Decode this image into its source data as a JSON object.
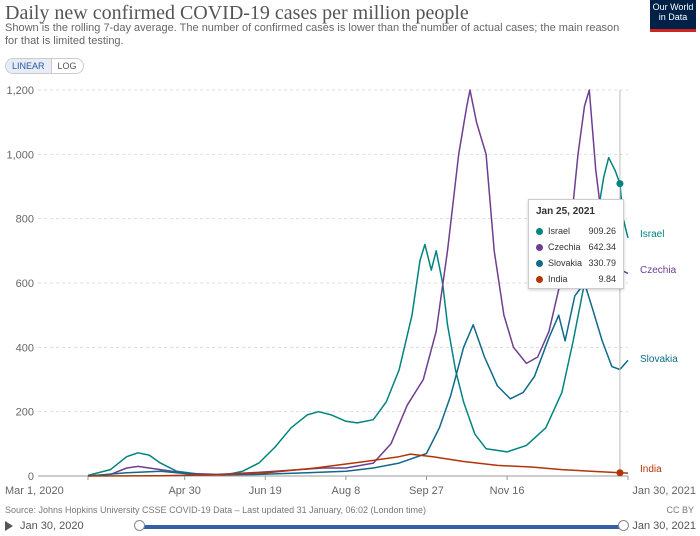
{
  "header": {
    "title": "Daily new confirmed COVID-19 cases per million people",
    "subtitle": "Shown is the rolling 7-day average. The number of confirmed cases is lower than the number of actual cases; the main reason for that is limited testing.",
    "logo_line1": "Our World",
    "logo_line2": "in Data"
  },
  "controls": {
    "linear_label": "LINEAR",
    "log_label": "LOG"
  },
  "footer": {
    "source": "Source: Johns Hopkins University CSSE COVID-19 Data – Last updated 31 January, 06:02 (London time)",
    "license": "CC BY",
    "timeline_start": "Jan 30, 2020",
    "timeline_end": "Jan 30, 2021"
  },
  "tooltip": {
    "date": "Jan 25, 2021",
    "rows": [
      {
        "name": "Israel",
        "value": "909.26",
        "color": "#00847e"
      },
      {
        "name": "Czechia",
        "value": "642.34",
        "color": "#6d3e91"
      },
      {
        "name": "Slovakia",
        "value": "330.79",
        "color": "#0e6a8a"
      },
      {
        "name": "India",
        "value": "9.84",
        "color": "#b13507"
      }
    ]
  },
  "chart_data": {
    "type": "line",
    "title": "Daily new confirmed COVID-19 cases per million people",
    "x_ticks": [
      "Mar 1, 2020",
      "Apr 30",
      "Jun 19",
      "Aug 8",
      "Sep 27",
      "Nov 16",
      "Jan 30, 2021"
    ],
    "ylim": [
      0,
      1200
    ],
    "y_ticks": [
      0,
      200,
      400,
      600,
      800,
      1000,
      1200
    ],
    "y_tick_labels": [
      "0",
      "200",
      "400",
      "600",
      "800",
      "1,000",
      "1,200"
    ],
    "grid": true,
    "x_start": "2020-01-30",
    "x_end": "2021-01-30",
    "series": [
      {
        "name": "Israel",
        "color": "#00847e",
        "points": [
          [
            "2020-03-01",
            2
          ],
          [
            "2020-03-15",
            20
          ],
          [
            "2020-03-25",
            60
          ],
          [
            "2020-04-01",
            72
          ],
          [
            "2020-04-08",
            65
          ],
          [
            "2020-04-15",
            40
          ],
          [
            "2020-04-25",
            15
          ],
          [
            "2020-05-10",
            5
          ],
          [
            "2020-05-25",
            3
          ],
          [
            "2020-06-05",
            15
          ],
          [
            "2020-06-15",
            40
          ],
          [
            "2020-06-25",
            90
          ],
          [
            "2020-07-05",
            150
          ],
          [
            "2020-07-15",
            190
          ],
          [
            "2020-07-22",
            200
          ],
          [
            "2020-07-30",
            190
          ],
          [
            "2020-08-08",
            170
          ],
          [
            "2020-08-15",
            165
          ],
          [
            "2020-08-25",
            175
          ],
          [
            "2020-09-02",
            230
          ],
          [
            "2020-09-10",
            330
          ],
          [
            "2020-09-18",
            500
          ],
          [
            "2020-09-23",
            670
          ],
          [
            "2020-09-26",
            720
          ],
          [
            "2020-09-30",
            640
          ],
          [
            "2020-10-03",
            700
          ],
          [
            "2020-10-07",
            600
          ],
          [
            "2020-10-10",
            470
          ],
          [
            "2020-10-15",
            330
          ],
          [
            "2020-10-20",
            230
          ],
          [
            "2020-10-27",
            130
          ],
          [
            "2020-11-03",
            85
          ],
          [
            "2020-11-16",
            75
          ],
          [
            "2020-11-28",
            95
          ],
          [
            "2020-12-10",
            150
          ],
          [
            "2020-12-20",
            260
          ],
          [
            "2020-12-27",
            420
          ],
          [
            "2021-01-03",
            600
          ],
          [
            "2021-01-10",
            780
          ],
          [
            "2021-01-15",
            930
          ],
          [
            "2021-01-18",
            990
          ],
          [
            "2021-01-22",
            950
          ],
          [
            "2021-01-25",
            909
          ],
          [
            "2021-01-27",
            800
          ],
          [
            "2021-01-30",
            740
          ]
        ]
      },
      {
        "name": "Czechia",
        "color": "#6d3e91",
        "points": [
          [
            "2020-03-01",
            0
          ],
          [
            "2020-03-15",
            5
          ],
          [
            "2020-03-25",
            25
          ],
          [
            "2020-04-01",
            30
          ],
          [
            "2020-04-15",
            20
          ],
          [
            "2020-05-01",
            8
          ],
          [
            "2020-05-20",
            5
          ],
          [
            "2020-06-10",
            10
          ],
          [
            "2020-06-25",
            15
          ],
          [
            "2020-07-10",
            20
          ],
          [
            "2020-07-25",
            25
          ],
          [
            "2020-08-08",
            25
          ],
          [
            "2020-08-25",
            40
          ],
          [
            "2020-09-05",
            100
          ],
          [
            "2020-09-15",
            220
          ],
          [
            "2020-09-25",
            300
          ],
          [
            "2020-10-03",
            450
          ],
          [
            "2020-10-10",
            700
          ],
          [
            "2020-10-17",
            1000
          ],
          [
            "2020-10-22",
            1150
          ],
          [
            "2020-10-24",
            1200
          ],
          [
            "2020-10-28",
            1100
          ],
          [
            "2020-11-03",
            1000
          ],
          [
            "2020-11-08",
            700
          ],
          [
            "2020-11-14",
            500
          ],
          [
            "2020-11-20",
            400
          ],
          [
            "2020-11-28",
            350
          ],
          [
            "2020-12-05",
            370
          ],
          [
            "2020-12-12",
            450
          ],
          [
            "2020-12-18",
            580
          ],
          [
            "2020-12-24",
            700
          ],
          [
            "2020-12-30",
            1000
          ],
          [
            "2021-01-03",
            1150
          ],
          [
            "2021-01-06",
            1200
          ],
          [
            "2021-01-10",
            950
          ],
          [
            "2021-01-15",
            750
          ],
          [
            "2021-01-20",
            680
          ],
          [
            "2021-01-25",
            642
          ],
          [
            "2021-01-30",
            630
          ]
        ]
      },
      {
        "name": "Slovakia",
        "color": "#0e6a8a",
        "points": [
          [
            "2020-03-01",
            0
          ],
          [
            "2020-03-25",
            10
          ],
          [
            "2020-04-15",
            15
          ],
          [
            "2020-05-10",
            3
          ],
          [
            "2020-06-15",
            5
          ],
          [
            "2020-07-15",
            10
          ],
          [
            "2020-08-08",
            15
          ],
          [
            "2020-08-25",
            25
          ],
          [
            "2020-09-10",
            40
          ],
          [
            "2020-09-27",
            70
          ],
          [
            "2020-10-05",
            150
          ],
          [
            "2020-10-12",
            250
          ],
          [
            "2020-10-20",
            400
          ],
          [
            "2020-10-26",
            470
          ],
          [
            "2020-11-02",
            370
          ],
          [
            "2020-11-10",
            280
          ],
          [
            "2020-11-18",
            240
          ],
          [
            "2020-11-26",
            260
          ],
          [
            "2020-12-03",
            310
          ],
          [
            "2020-12-12",
            430
          ],
          [
            "2020-12-18",
            500
          ],
          [
            "2020-12-22",
            420
          ],
          [
            "2020-12-28",
            560
          ],
          [
            "2021-01-03",
            600
          ],
          [
            "2021-01-08",
            520
          ],
          [
            "2021-01-14",
            420
          ],
          [
            "2021-01-20",
            340
          ],
          [
            "2021-01-25",
            331
          ],
          [
            "2021-01-30",
            360
          ]
        ]
      },
      {
        "name": "India",
        "color": "#b13507",
        "points": [
          [
            "2020-03-01",
            0
          ],
          [
            "2020-04-15",
            1
          ],
          [
            "2020-05-20",
            4
          ],
          [
            "2020-06-20",
            10
          ],
          [
            "2020-07-20",
            25
          ],
          [
            "2020-08-20",
            45
          ],
          [
            "2020-09-10",
            60
          ],
          [
            "2020-09-17",
            68
          ],
          [
            "2020-10-01",
            60
          ],
          [
            "2020-10-20",
            45
          ],
          [
            "2020-11-10",
            33
          ],
          [
            "2020-12-01",
            28
          ],
          [
            "2020-12-20",
            20
          ],
          [
            "2021-01-10",
            14
          ],
          [
            "2021-01-25",
            10
          ],
          [
            "2021-01-30",
            9
          ]
        ]
      }
    ]
  }
}
